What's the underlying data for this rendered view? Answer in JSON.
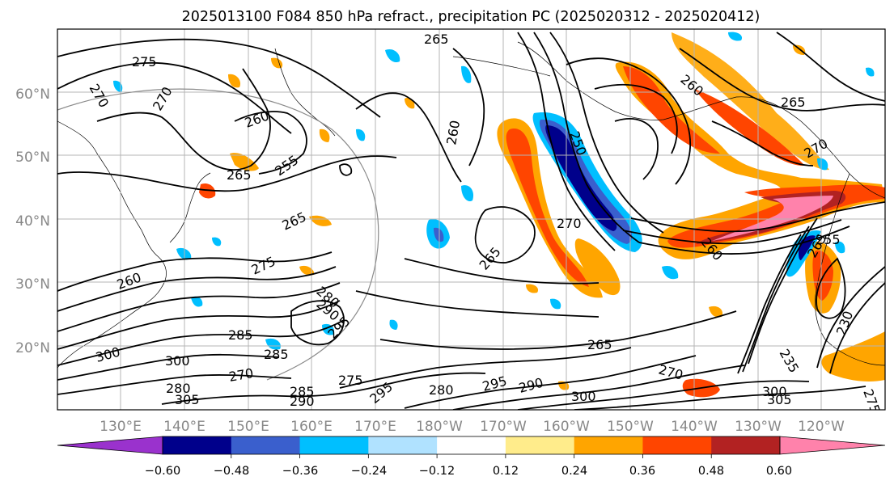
{
  "figure": {
    "title": "2025013100 F084 850 hPa refract., precipitation PC (2025020312 - 2025020412)"
  },
  "map": {
    "lat_labels": [
      "60°N",
      "50°N",
      "40°N",
      "30°N",
      "20°N"
    ],
    "lon_labels": [
      "130°E",
      "140°E",
      "150°E",
      "160°E",
      "170°E",
      "180°W",
      "170°W",
      "160°W",
      "150°W",
      "140°W",
      "130°W",
      "120°W"
    ],
    "contour_labels": [
      "275",
      "270",
      "270",
      "265",
      "260",
      "255",
      "265",
      "260",
      "265",
      "265",
      "260",
      "250",
      "270",
      "265",
      "260",
      "260",
      "265",
      "270",
      "255",
      "275",
      "280",
      "285",
      "290",
      "295",
      "300",
      "285",
      "270",
      "275",
      "280",
      "285",
      "290",
      "295",
      "300",
      "305",
      "265",
      "270",
      "280",
      "290",
      "295",
      "300",
      "300",
      "305",
      "235",
      "230",
      "275"
    ]
  },
  "colorbar": {
    "colors": [
      "#9a32cd",
      "#00008b",
      "#3a5fcd",
      "#00bfff",
      "#b0e2ff",
      "#ffffff",
      "#ffec8b",
      "#ffa500",
      "#ff4500",
      "#b22222",
      "#ff82ab"
    ],
    "tick_labels": [
      "−0.60",
      "−0.48",
      "−0.36",
      "−0.24",
      "−0.12",
      "0.12",
      "0.24",
      "0.36",
      "0.48",
      "0.60"
    ]
  },
  "colors": {
    "axis_label": "#888888",
    "contour": "#000000",
    "grid": "#b4b4b4",
    "coast": "#000000"
  }
}
